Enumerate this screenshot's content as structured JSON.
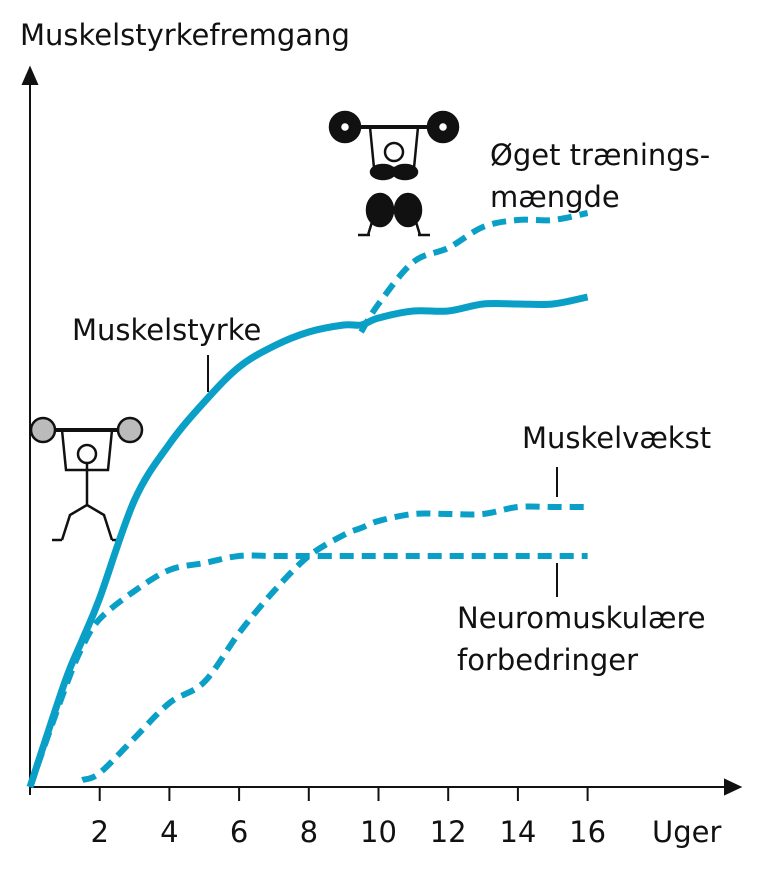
{
  "chart_data": {
    "type": "line",
    "title": "Muskelstyrkefremgang",
    "x_label": "Uger",
    "x": [
      0,
      1,
      1.5,
      2,
      3,
      4,
      5,
      6,
      7,
      8,
      9,
      9.5,
      10,
      11,
      12,
      13,
      14,
      15,
      16
    ],
    "xlim": [
      0,
      20
    ],
    "xticks": [
      2,
      4,
      6,
      8,
      10,
      12,
      14,
      16
    ],
    "ylim": [
      0,
      100
    ],
    "series": [
      {
        "name": [
          "Muskelstyrke"
        ],
        "color": "#0a9fc7",
        "dashed": false,
        "values": [
          0,
          15,
          21,
          27,
          41,
          49,
          55,
          60,
          63,
          65,
          66,
          66,
          67,
          68,
          68,
          69,
          69,
          69,
          70
        ]
      },
      {
        "name": [
          "Øget trænings-",
          "mængde"
        ],
        "color": "#0a9fc7",
        "dashed": true,
        "values": [
          null,
          null,
          null,
          null,
          null,
          null,
          null,
          null,
          null,
          null,
          null,
          65,
          69,
          75,
          77,
          80,
          81,
          81,
          82
        ]
      },
      {
        "name": [
          "Muskelvækst"
        ],
        "color": "#0a9fc7",
        "dashed": true,
        "values": [
          null,
          null,
          1,
          2,
          7,
          12,
          15,
          22,
          28,
          33,
          36,
          37,
          38,
          39,
          39,
          39,
          40,
          40,
          40
        ]
      },
      {
        "name": [
          "Neuromuskulære",
          "forbedringer"
        ],
        "color": "#0a9fc7",
        "dashed": true,
        "values": [
          0,
          14,
          20,
          24,
          28,
          31,
          32,
          33,
          33,
          33,
          33,
          33,
          33,
          33,
          33,
          33,
          33,
          33,
          33
        ]
      }
    ]
  }
}
